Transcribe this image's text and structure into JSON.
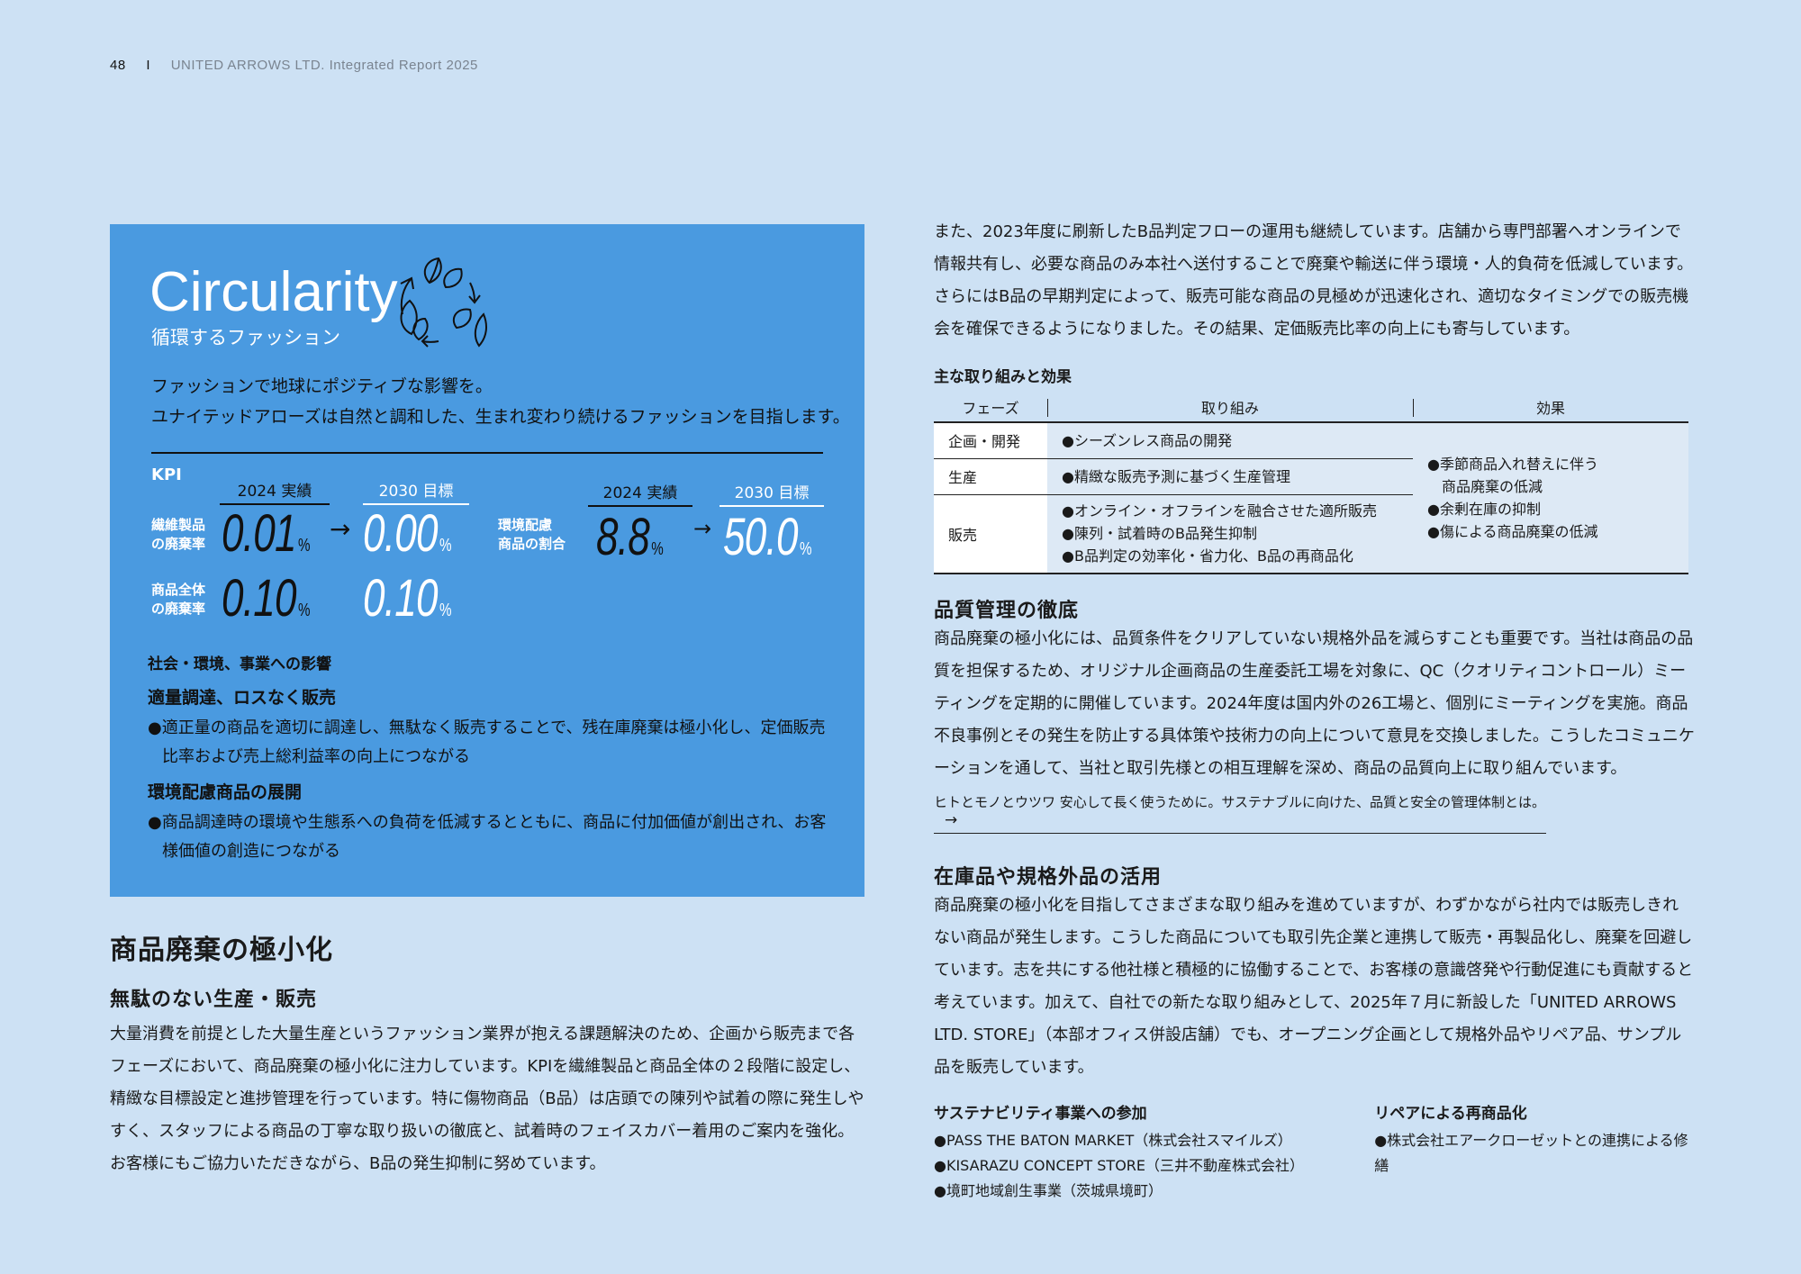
{
  "header": {
    "page": "48",
    "separator": "I",
    "title": "UNITED ARROWS LTD. Integrated Report 2025"
  },
  "circularity": {
    "title": "Circularity",
    "subtitle": "循環するファッション",
    "icon": "leaf-cycle-icon",
    "tagline": [
      "ファッションで地球にポジティブな影響を。",
      "ユナイテッドアローズは自然と調和した、生まれ変わり続けるファッションを目指します。"
    ],
    "kpi_label": "KPI",
    "col_actual": "2024 実績",
    "col_target": "2030 目標",
    "kpis": [
      {
        "label1": "繊維製品",
        "label2": "の廃棄率",
        "actual": "0.01",
        "target": "0.00",
        "unit": "%"
      },
      {
        "label1": "商品全体",
        "label2": "の廃棄率",
        "actual": "0.10",
        "target": "0.10",
        "unit": "%"
      },
      {
        "label1": "環境配慮",
        "label2": "商品の割合",
        "actual": "8.8",
        "target": "50.0",
        "unit": "%"
      }
    ],
    "arrow": "→",
    "impact_heading": "社会・環境、事業への影響",
    "impacts": [
      {
        "title": "適量調達、ロスなく販売",
        "text": "●適正量の商品を適切に調達し、無駄なく販売することで、残在庫廃棄は極小化し、定価販売比率および売上総利益率の向上につながる"
      },
      {
        "title": "環境配慮商品の展開",
        "text": "●商品調達時の環境や生態系への負荷を低減するとともに、商品に付加価値が創出され、お客様価値の創造につながる"
      }
    ]
  },
  "left": {
    "heading": "商品廃棄の極小化",
    "subheading": "無駄のない生産・販売",
    "paragraph": "大量消費を前提とした大量生産というファッション業界が抱える課題解決のため、企画から販売まで各フェーズにおいて、商品廃棄の極小化に注力しています。KPIを繊維製品と商品全体の２段階に設定し、精緻な目標設定と進捗管理を行っています。特に傷物商品（B品）は店頭での陳列や試着の際に発生しやすく、スタッフによる商品の丁寧な取り扱いの徹底と、試着時のフェイスカバー着用のご案内を強化。お客様にもご協力いただきながら、B品の発生抑制に努めています。"
  },
  "right": {
    "intro": "また、2023年度に刷新したB品判定フローの運用も継続しています。店舗から専門部署へオンラインで情報共有し、必要な商品のみ本社へ送付することで廃棄や輸送に伴う環境・人的負荷を低減しています。さらにはB品の早期判定によって、販売可能な商品の見極めが迅速化され、適切なタイミングでの販売機会を確保できるようになりました。その結果、定価販売比率の向上にも寄与しています。",
    "table": {
      "title": "主な取り組みと効果",
      "headers": [
        "フェーズ",
        "取り組み",
        "効果"
      ],
      "rows": [
        {
          "phase": "企画・開発",
          "actions": [
            "●シーズンレス商品の開発"
          ]
        },
        {
          "phase": "生産",
          "actions": [
            "●精緻な販売予測に基づく生産管理"
          ]
        },
        {
          "phase": "販売",
          "actions": [
            "●オンライン・オフラインを融合させた適所販売",
            "●陳列・試着時のB品発生抑制",
            "●B品判定の効率化・省力化、B品の再商品化"
          ]
        }
      ],
      "effects": [
        "●季節商品入れ替えに伴う",
        "　商品廃棄の低減",
        "●余剰在庫の抑制",
        "●傷による商品廃棄の低減"
      ]
    },
    "quality": {
      "heading": "品質管理の徹底",
      "paragraph": "商品廃棄の極小化には、品質条件をクリアしていない規格外品を減らすことも重要です。当社は商品の品質を担保するため、オリジナル企画商品の生産委託工場を対象に、QC（クオリティコントロール）ミーティングを定期的に開催しています。2024年度は国内外の26工場と、個別にミーティングを実施。商品不良事例とその発生を防止する具体策や技術力の向上について意見を交換しました。こうしたコミュニケーションを通して、当社と取引先様との相互理解を深め、商品の品質向上に取り組んでいます。",
      "link": "ヒトとモノとウツワ 安心して長く使うために。サステナブルに向けた、品質と安全の管理体制とは。",
      "link_icon": "arrow-right-icon"
    },
    "stock": {
      "heading": "在庫品や規格外品の活用",
      "paragraph": "商品廃棄の極小化を目指してさまざまな取り組みを進めていますが、わずかながら社内では販売しきれない商品が発生します。こうした商品についても取引先企業と連携して販売・再製品化し、廃棄を回避しています。志を共にする他社様と積極的に協働することで、お客様の意識啓発や行動促進にも貢献すると考えています。加えて、自社での新たな取り組みとして、2025年７月に新設した「UNITED ARROWS LTD. STORE」（本部オフィス併設店舗）でも、オープニング企画として規格外品やリペア品、サンプル品を販売しています。"
    },
    "sustain": {
      "title": "サステナビリティ事業への参加",
      "items": [
        "●PASS THE BATON MARKET（株式会社スマイルズ）",
        "●KISARAZU CONCEPT STORE（三井不動産株式会社）",
        "●境町地域創生事業（茨城県境町）"
      ]
    },
    "repair": {
      "title": "リペアによる再商品化",
      "items": [
        "●株式会社エアークローゼットとの連携による修繕"
      ]
    }
  },
  "colors": {
    "background": "#cde1f4",
    "box": "#4a9ae0",
    "table_light": "#dde9f5"
  }
}
